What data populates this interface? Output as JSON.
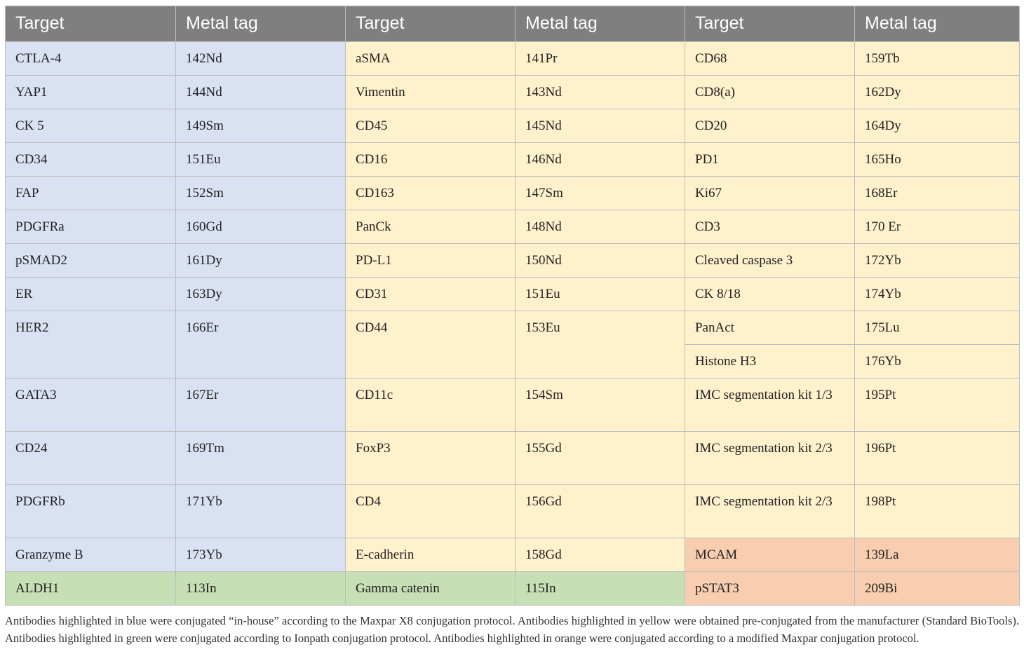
{
  "header": [
    "Target",
    "Metal tag",
    "Target",
    "Metal tag",
    "Target",
    "Metal tag"
  ],
  "blue": [
    [
      "CTLA-4",
      "142Nd"
    ],
    [
      "YAP1",
      "144Nd"
    ],
    [
      "CK 5",
      "149Sm"
    ],
    [
      "CD34",
      "151Eu"
    ],
    [
      "FAP",
      "152Sm"
    ],
    [
      "PDGFRa",
      "160Gd"
    ],
    [
      "pSMAD2",
      "161Dy"
    ],
    [
      "ER",
      "163Dy"
    ],
    [
      "HER2",
      "166Er"
    ],
    [
      "GATA3",
      "167Er"
    ],
    [
      "CD24",
      "169Tm"
    ],
    [
      "PDGFRb",
      "171Yb"
    ],
    [
      "Granzyme B",
      "173Yb"
    ]
  ],
  "yellow_mid": [
    [
      "aSMA",
      "141Pr"
    ],
    [
      "Vimentin",
      "143Nd"
    ],
    [
      "CD45",
      "145Nd"
    ],
    [
      "CD16",
      "146Nd"
    ],
    [
      "CD163",
      "147Sm"
    ],
    [
      "PanCk",
      "148Nd"
    ],
    [
      "PD-L1",
      "150Nd"
    ],
    [
      "CD31",
      "151Eu"
    ],
    [
      "CD44",
      "153Eu"
    ],
    [
      "CD11c",
      "154Sm"
    ],
    [
      "FoxP3",
      "155Gd"
    ],
    [
      "CD4",
      "156Gd"
    ],
    [
      "E-cadherin",
      "158Gd"
    ]
  ],
  "yellow_right": [
    [
      "CD68",
      "159Tb"
    ],
    [
      "CD8(a)",
      "162Dy"
    ],
    [
      "CD20",
      "164Dy"
    ],
    [
      "PD1",
      "165Ho"
    ],
    [
      "Ki67",
      "168Er"
    ],
    [
      "CD3",
      "170 Er"
    ],
    [
      "Cleaved caspase 3",
      "172Yb"
    ],
    [
      "CK 8/18",
      "174Yb"
    ],
    [
      "PanAct",
      "175Lu"
    ],
    [
      "Histone H3",
      "176Yb"
    ],
    [
      "IMC segmentation kit 1/3",
      "195Pt"
    ],
    [
      "IMC segmentation kit 2/3",
      "196Pt"
    ],
    [
      "IMC segmentation kit 2/3",
      "198Pt"
    ]
  ],
  "orange": [
    [
      "MCAM",
      "139La"
    ],
    [
      "pSTAT3",
      "209Bi"
    ]
  ],
  "green": [
    [
      "ALDH1",
      "113In"
    ],
    [
      "Gamma catenin",
      "115In"
    ]
  ],
  "caption": "Antibodies highlighted in blue were conjugated “in-house” according to the Maxpar X8 conjugation protocol. Antibodies highlighted in yellow were obtained pre-conjugated from the manufacturer (Standard BioTools). Antibodies highlighted in green were conjugated according to Ionpath conjugation protocol. Antibodies highlighted in orange were conjugated according to a modified Maxpar conjugation protocol.",
  "colors": {
    "header": "#7f7f7f",
    "blue": "#d9e1f3",
    "yellow": "#fff1cc",
    "green": "#c6dfb5",
    "orange": "#f8cdb0"
  }
}
